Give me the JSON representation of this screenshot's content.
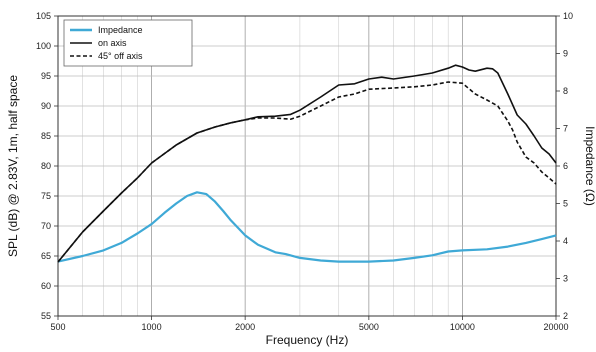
{
  "chart_data": {
    "type": "line",
    "xlabel": "Frequency (Hz)",
    "ylabel": "SPL (dB) @ 2.83V, 1m, half space",
    "y2label": "Impedance (Ω)",
    "x_scale": "log",
    "xlim": [
      500,
      20000
    ],
    "ylim": [
      55,
      105
    ],
    "y2lim": [
      2,
      10
    ],
    "x_ticks": [
      500,
      1000,
      2000,
      5000,
      10000,
      20000
    ],
    "x_tick_labels": [
      "500",
      "1000",
      "2000",
      "5000",
      "10000",
      "20000"
    ],
    "y_ticks": [
      55,
      60,
      65,
      70,
      75,
      80,
      85,
      90,
      95,
      100,
      105
    ],
    "y2_ticks": [
      2,
      3,
      4,
      5,
      6,
      7,
      8,
      9,
      10
    ],
    "grid": true,
    "legend_position": "top-left",
    "series": [
      {
        "name": "Impedance",
        "axis": "right",
        "color": "#3fa9d6",
        "style": "solid",
        "x": [
          500,
          600,
          700,
          800,
          900,
          1000,
          1100,
          1200,
          1300,
          1400,
          1500,
          1600,
          1700,
          1800,
          2000,
          2200,
          2500,
          2700,
          3000,
          3500,
          4000,
          5000,
          6000,
          7000,
          8000,
          9000,
          10000,
          12000,
          14000,
          16000,
          18000,
          20000
        ],
        "values": [
          3.45,
          3.6,
          3.75,
          3.95,
          4.2,
          4.45,
          4.75,
          5.0,
          5.2,
          5.3,
          5.25,
          5.05,
          4.8,
          4.55,
          4.15,
          3.9,
          3.7,
          3.65,
          3.55,
          3.48,
          3.45,
          3.45,
          3.48,
          3.55,
          3.62,
          3.72,
          3.75,
          3.78,
          3.85,
          3.95,
          4.05,
          4.15
        ]
      },
      {
        "name": "on axis",
        "axis": "left",
        "color": "#111111",
        "style": "solid",
        "x": [
          500,
          600,
          700,
          800,
          900,
          1000,
          1200,
          1400,
          1600,
          1800,
          2000,
          2200,
          2500,
          2800,
          3000,
          3500,
          4000,
          4500,
          5000,
          5500,
          6000,
          7000,
          8000,
          9000,
          9500,
          10000,
          10500,
          11000,
          12000,
          12500,
          13000,
          14000,
          15000,
          16000,
          17000,
          18000,
          19000,
          20000
        ],
        "values": [
          64.0,
          69.0,
          72.5,
          75.5,
          78.0,
          80.5,
          83.5,
          85.5,
          86.5,
          87.2,
          87.7,
          88.2,
          88.3,
          88.6,
          89.3,
          91.5,
          93.5,
          93.7,
          94.5,
          94.8,
          94.5,
          95.0,
          95.5,
          96.3,
          96.8,
          96.5,
          96.0,
          95.8,
          96.3,
          96.2,
          95.5,
          92.0,
          88.5,
          87.0,
          85.0,
          83.0,
          82.0,
          80.5
        ]
      },
      {
        "name": "45° off axis",
        "axis": "left",
        "color": "#111111",
        "style": "dashed",
        "x": [
          500,
          600,
          700,
          800,
          900,
          1000,
          1200,
          1400,
          1600,
          1800,
          2000,
          2200,
          2500,
          2800,
          3000,
          3500,
          4000,
          4500,
          5000,
          6000,
          7000,
          8000,
          9000,
          10000,
          11000,
          12000,
          13000,
          14000,
          14500,
          15000,
          16000,
          17000,
          18000,
          19000,
          20000
        ],
        "values": [
          64.0,
          69.0,
          72.5,
          75.5,
          78.0,
          80.5,
          83.5,
          85.5,
          86.5,
          87.2,
          87.7,
          88.0,
          88.0,
          87.8,
          88.3,
          90.0,
          91.5,
          92.0,
          92.8,
          93.0,
          93.2,
          93.5,
          94.0,
          93.8,
          92.0,
          91.0,
          90.0,
          87.5,
          86.0,
          84.0,
          81.5,
          80.5,
          79.0,
          78.0,
          77.0
        ]
      }
    ]
  }
}
